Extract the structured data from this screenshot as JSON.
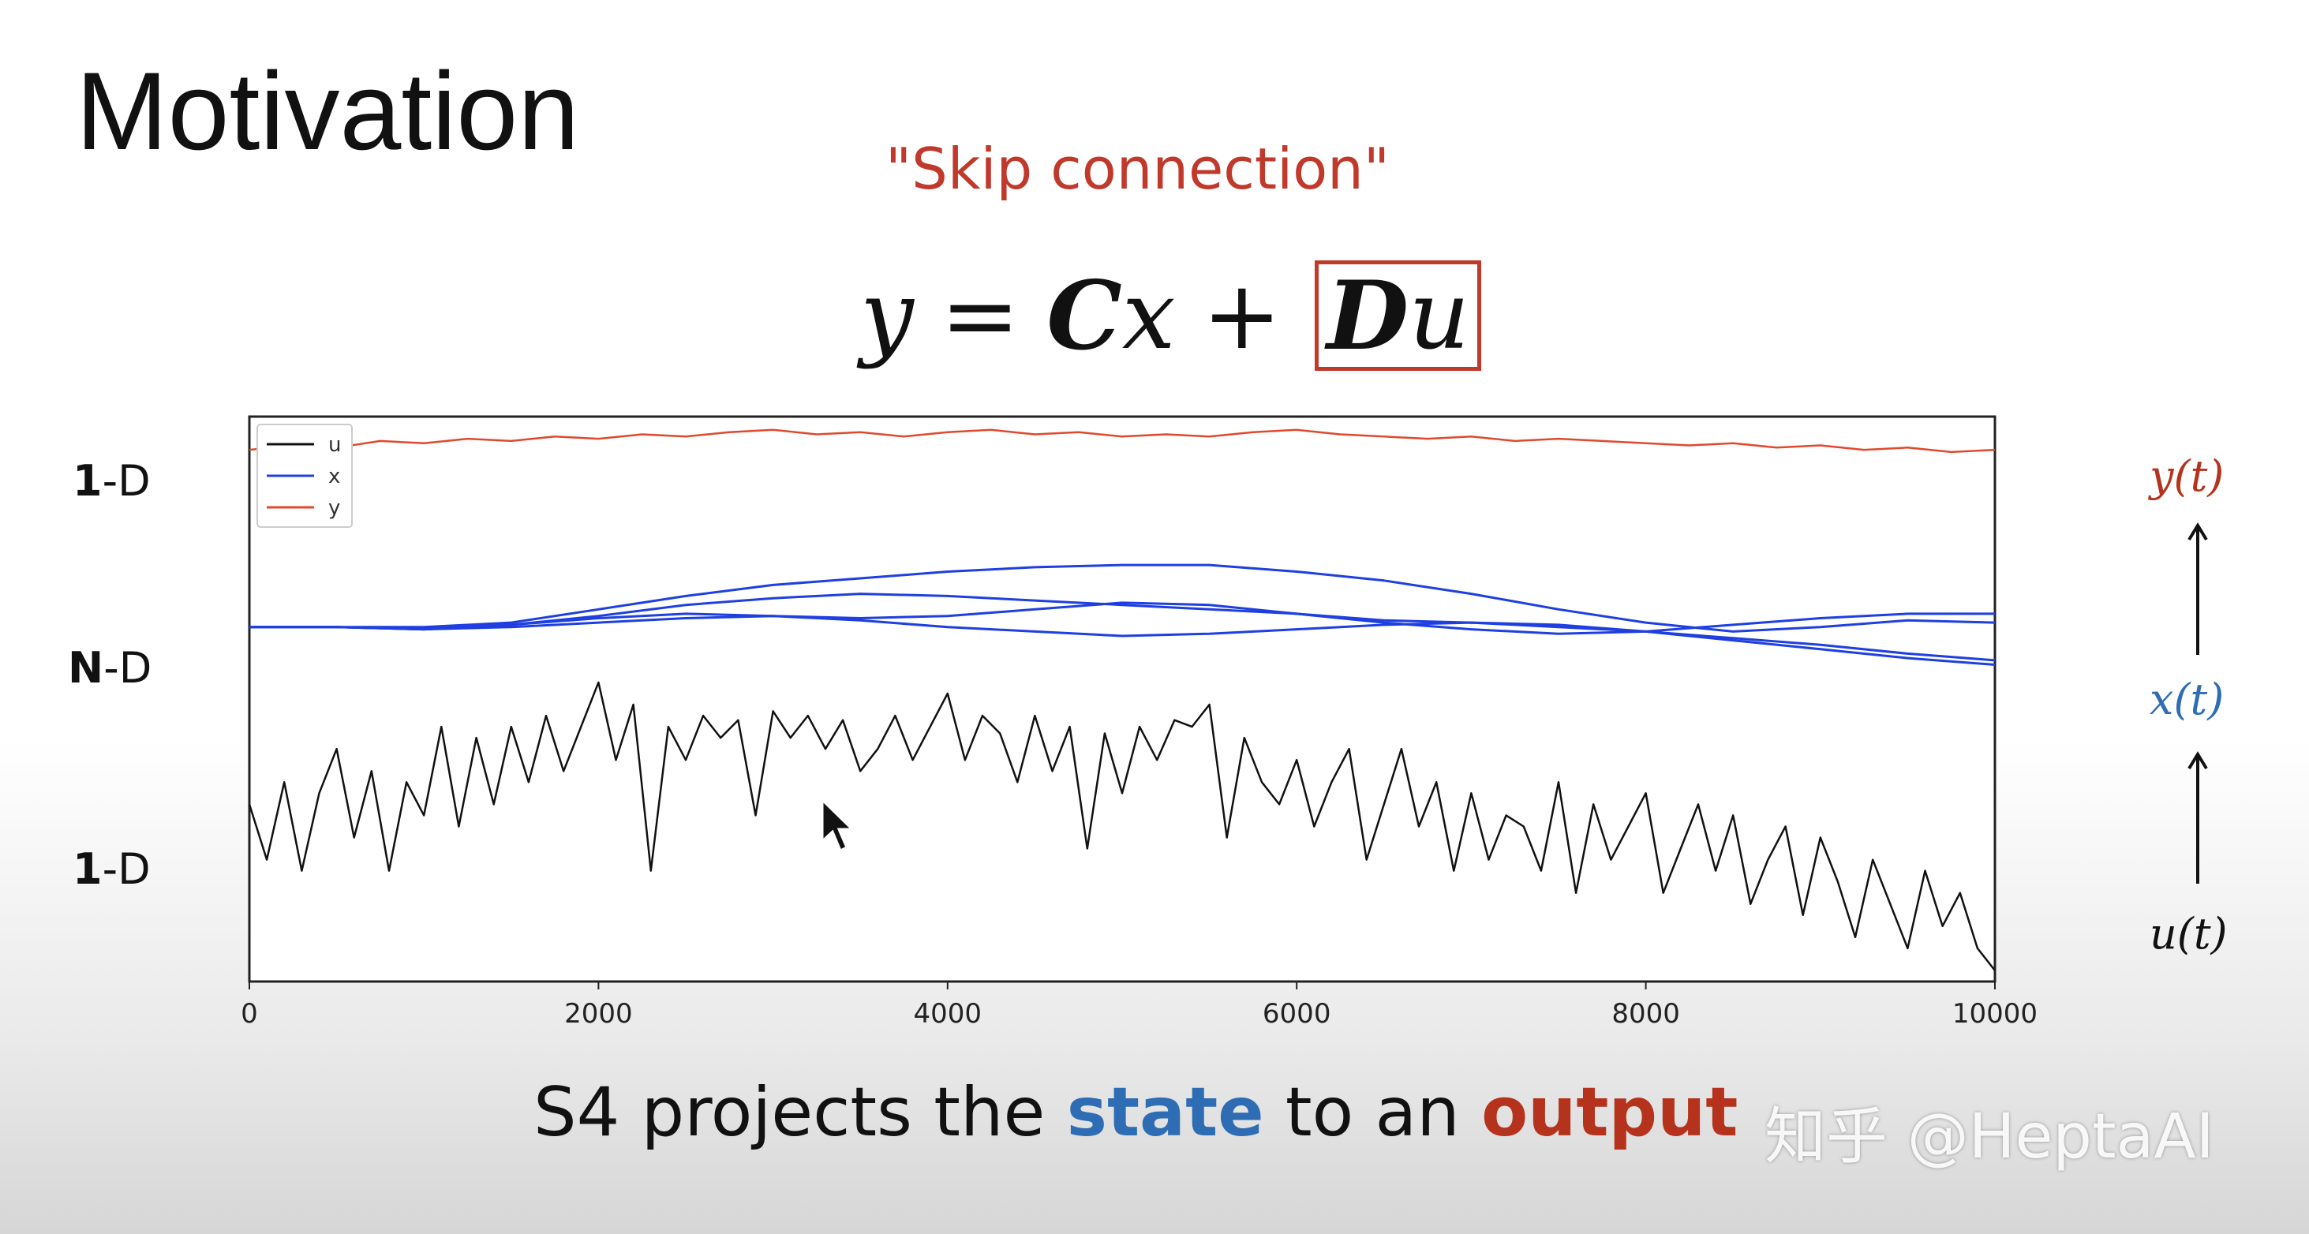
{
  "slide": {
    "title": "Motivation",
    "skip_label": "\"Skip connection\"",
    "equation": {
      "lhs": "y",
      "eq": "=",
      "C": "C",
      "x": "x",
      "plus": "+",
      "D": "D",
      "u": "u"
    },
    "left_labels": [
      {
        "bold": "1",
        "rest": "-D"
      },
      {
        "bold": "N",
        "rest": "-D"
      },
      {
        "bold": "1",
        "rest": "-D"
      }
    ],
    "right_labels": {
      "y": "y(t)",
      "x": "x(t)",
      "u": "u(t)"
    },
    "caption": {
      "pre": "S4 projects the ",
      "state": "state",
      "mid": " to an ",
      "output": "output"
    },
    "watermark": "知乎 @HeptaAI"
  },
  "colors": {
    "u": "#111111",
    "x": "#1f3fe0",
    "y": "#e0492d",
    "skip": "#c0392b",
    "state": "#2e6db4",
    "output": "#b5331c"
  },
  "chart_data": {
    "type": "line",
    "xlim": [
      0,
      10000
    ],
    "x_ticks": [
      0,
      2000,
      4000,
      6000,
      8000,
      10000
    ],
    "x_tick_labels": [
      "0",
      "2000",
      "4000",
      "6000",
      "8000",
      "10000"
    ],
    "legend": {
      "placement": "top-left",
      "entries": [
        "u",
        "x",
        "y"
      ]
    },
    "grid": false,
    "series": [
      {
        "name": "y",
        "color": "#e0492d",
        "x": [
          0,
          250,
          500,
          750,
          1000,
          1250,
          1500,
          1750,
          2000,
          2250,
          2500,
          2750,
          3000,
          3250,
          3500,
          3750,
          4000,
          4250,
          4500,
          4750,
          5000,
          5250,
          5500,
          5750,
          6000,
          6250,
          6500,
          6750,
          7000,
          7250,
          7500,
          7750,
          8000,
          8250,
          8500,
          8750,
          9000,
          9250,
          9500,
          9750,
          10000
        ],
        "y": [
          1.3,
          1.32,
          1.31,
          1.34,
          1.33,
          1.35,
          1.34,
          1.36,
          1.35,
          1.37,
          1.36,
          1.38,
          1.39,
          1.37,
          1.38,
          1.36,
          1.38,
          1.39,
          1.37,
          1.38,
          1.36,
          1.37,
          1.36,
          1.38,
          1.39,
          1.37,
          1.36,
          1.35,
          1.36,
          1.34,
          1.35,
          1.34,
          1.33,
          1.32,
          1.33,
          1.31,
          1.32,
          1.3,
          1.31,
          1.29,
          1.3
        ]
      },
      {
        "name": "x",
        "color": "#1f3fe0",
        "x": [
          0,
          500,
          1000,
          1500,
          2000,
          2500,
          3000,
          3500,
          4000,
          4500,
          5000,
          5500,
          6000,
          6500,
          7000,
          7500,
          8000,
          8500,
          9000,
          9500,
          10000
        ],
        "y": [
          0.5,
          0.5,
          0.5,
          0.52,
          0.58,
          0.64,
          0.69,
          0.72,
          0.75,
          0.77,
          0.78,
          0.78,
          0.75,
          0.71,
          0.65,
          0.58,
          0.52,
          0.48,
          0.5,
          0.53,
          0.52
        ]
      },
      {
        "name": "x",
        "color": "#1f3fe0",
        "x": [
          0,
          500,
          1000,
          1500,
          2000,
          2500,
          3000,
          3500,
          4000,
          4500,
          5000,
          5500,
          6000,
          6500,
          7000,
          7500,
          8000,
          8500,
          9000,
          9500,
          10000
        ],
        "y": [
          0.5,
          0.5,
          0.49,
          0.51,
          0.55,
          0.6,
          0.63,
          0.65,
          0.64,
          0.62,
          0.6,
          0.58,
          0.56,
          0.53,
          0.52,
          0.5,
          0.48,
          0.44,
          0.4,
          0.36,
          0.33
        ]
      },
      {
        "name": "x",
        "color": "#1f3fe0",
        "x": [
          0,
          500,
          1000,
          1500,
          2000,
          2500,
          3000,
          3500,
          4000,
          4500,
          5000,
          5500,
          6000,
          6500,
          7000,
          7500,
          8000,
          8500,
          9000,
          9500,
          10000
        ],
        "y": [
          0.5,
          0.5,
          0.49,
          0.5,
          0.52,
          0.54,
          0.55,
          0.53,
          0.5,
          0.48,
          0.46,
          0.47,
          0.49,
          0.51,
          0.52,
          0.51,
          0.48,
          0.45,
          0.42,
          0.38,
          0.35
        ]
      },
      {
        "name": "x",
        "color": "#1f3fe0",
        "x": [
          0,
          500,
          1000,
          1500,
          2000,
          2500,
          3000,
          3500,
          4000,
          4500,
          5000,
          5500,
          6000,
          6500,
          7000,
          7500,
          8000,
          8500,
          9000,
          9500,
          10000
        ],
        "y": [
          0.5,
          0.5,
          0.49,
          0.51,
          0.54,
          0.56,
          0.55,
          0.54,
          0.55,
          0.58,
          0.61,
          0.6,
          0.56,
          0.52,
          0.49,
          0.47,
          0.48,
          0.51,
          0.54,
          0.56,
          0.56
        ]
      },
      {
        "name": "u",
        "color": "#111111",
        "x": [
          0,
          100,
          200,
          300,
          400,
          500,
          600,
          700,
          800,
          900,
          1000,
          1100,
          1200,
          1300,
          1400,
          1500,
          1600,
          1700,
          1800,
          1900,
          2000,
          2100,
          2200,
          2300,
          2400,
          2500,
          2600,
          2700,
          2800,
          2900,
          3000,
          3100,
          3200,
          3300,
          3400,
          3500,
          3600,
          3700,
          3800,
          3900,
          4000,
          4100,
          4200,
          4300,
          4400,
          4500,
          4600,
          4700,
          4800,
          4900,
          5000,
          5100,
          5200,
          5300,
          5400,
          5500,
          5600,
          5700,
          5800,
          5900,
          6000,
          6100,
          6200,
          6300,
          6400,
          6500,
          6600,
          6700,
          6800,
          6900,
          7000,
          7100,
          7200,
          7300,
          7400,
          7500,
          7600,
          7700,
          7800,
          7900,
          8000,
          8100,
          8200,
          8300,
          8400,
          8500,
          8600,
          8700,
          8800,
          8900,
          9000,
          9100,
          9200,
          9300,
          9400,
          9500,
          9600,
          9700,
          9800,
          9900,
          10000
        ],
        "y": [
          -0.3,
          -0.55,
          -0.2,
          -0.6,
          -0.25,
          -0.05,
          -0.45,
          -0.15,
          -0.6,
          -0.2,
          -0.35,
          0.05,
          -0.4,
          0.0,
          -0.3,
          0.05,
          -0.2,
          0.1,
          -0.15,
          0.05,
          0.25,
          -0.1,
          0.15,
          -0.6,
          0.05,
          -0.1,
          0.1,
          0.0,
          0.08,
          -0.35,
          0.12,
          0.0,
          0.1,
          -0.05,
          0.08,
          -0.15,
          -0.05,
          0.1,
          -0.1,
          0.05,
          0.2,
          -0.1,
          0.1,
          0.02,
          -0.2,
          0.1,
          -0.15,
          0.05,
          -0.5,
          0.02,
          -0.25,
          0.05,
          -0.1,
          0.08,
          0.05,
          0.15,
          -0.45,
          0.0,
          -0.2,
          -0.3,
          -0.1,
          -0.4,
          -0.2,
          -0.05,
          -0.55,
          -0.3,
          -0.05,
          -0.4,
          -0.2,
          -0.6,
          -0.25,
          -0.55,
          -0.35,
          -0.4,
          -0.6,
          -0.2,
          -0.7,
          -0.3,
          -0.55,
          -0.4,
          -0.25,
          -0.7,
          -0.5,
          -0.3,
          -0.6,
          -0.35,
          -0.75,
          -0.55,
          -0.4,
          -0.8,
          -0.45,
          -0.65,
          -0.9,
          -0.55,
          -0.75,
          -0.95,
          -0.6,
          -0.85,
          -0.7,
          -0.95,
          -1.05
        ]
      }
    ],
    "y_range": [
      -1.1,
      1.45
    ]
  }
}
